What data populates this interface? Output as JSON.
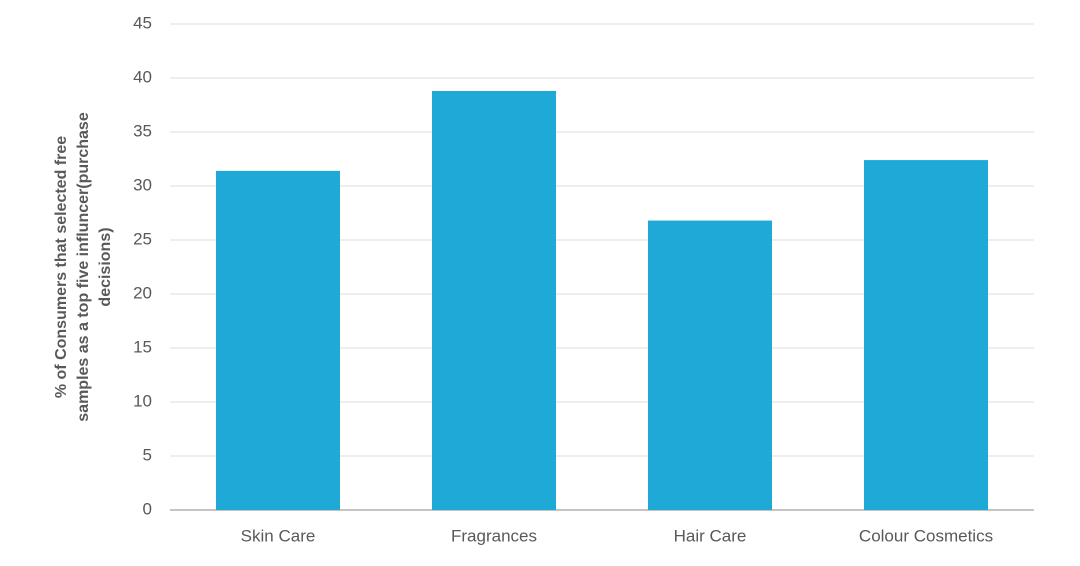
{
  "chart_data": {
    "type": "bar",
    "y_label_lines": [
      "% of Consumers that selected free",
      "samples as a top five influncer(purchase",
      "decisions)"
    ],
    "categories": [
      "Skin Care",
      "Fragrances",
      "Hair Care",
      "Colour Cosmetics"
    ],
    "values": [
      31.4,
      38.8,
      26.8,
      32.4
    ],
    "color": "#1fa9d6",
    "ylim": [
      0,
      45
    ],
    "yticks": [
      0,
      5,
      10,
      15,
      20,
      25,
      30,
      35,
      40,
      45
    ],
    "grid": true
  }
}
